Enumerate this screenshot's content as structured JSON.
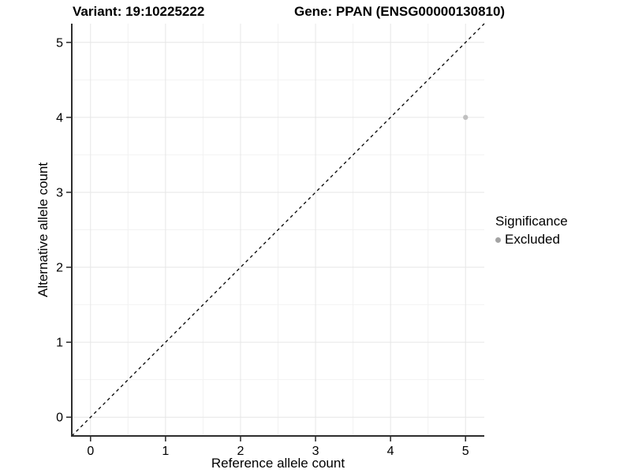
{
  "header": {
    "variant_title": "Variant: 19:10225222",
    "gene_title": "Gene: PPAN (ENSG00000130810)"
  },
  "legend": {
    "title": "Significance",
    "items": [
      {
        "label": "Excluded",
        "color": "#a3a3a3"
      }
    ]
  },
  "chart_data": {
    "type": "scatter",
    "title": "Variant: 19:10225222   Gene: PPAN (ENSG00000130810)",
    "xlabel": "Reference allele count",
    "ylabel": "Alternative allele count",
    "xlim": [
      -0.25,
      5.25
    ],
    "ylim": [
      -0.25,
      5.25
    ],
    "x_ticks": [
      0,
      1,
      2,
      3,
      4,
      5
    ],
    "y_ticks": [
      0,
      1,
      2,
      3,
      4,
      5
    ],
    "x_minor_ticks": [
      0.5,
      1.5,
      2.5,
      3.5,
      4.5
    ],
    "y_minor_ticks": [
      0.5,
      1.5,
      2.5,
      3.5,
      4.5
    ],
    "grid": true,
    "legend_position": "right",
    "series": [
      {
        "name": "Excluded",
        "color": "#c0c0c0",
        "points": [
          {
            "x": 5,
            "y": 4
          }
        ]
      }
    ],
    "reference_line": {
      "type": "identity",
      "from": [
        -0.25,
        -0.25
      ],
      "to": [
        5.25,
        5.25
      ],
      "style": "dashed",
      "color": "#000000"
    },
    "style": {
      "background": "#ffffff",
      "grid_major_color": "#e6e6e6",
      "grid_minor_color": "#f2f2f2",
      "axis_line_color": "#2e2e2e",
      "tick_color": "#333333"
    }
  }
}
